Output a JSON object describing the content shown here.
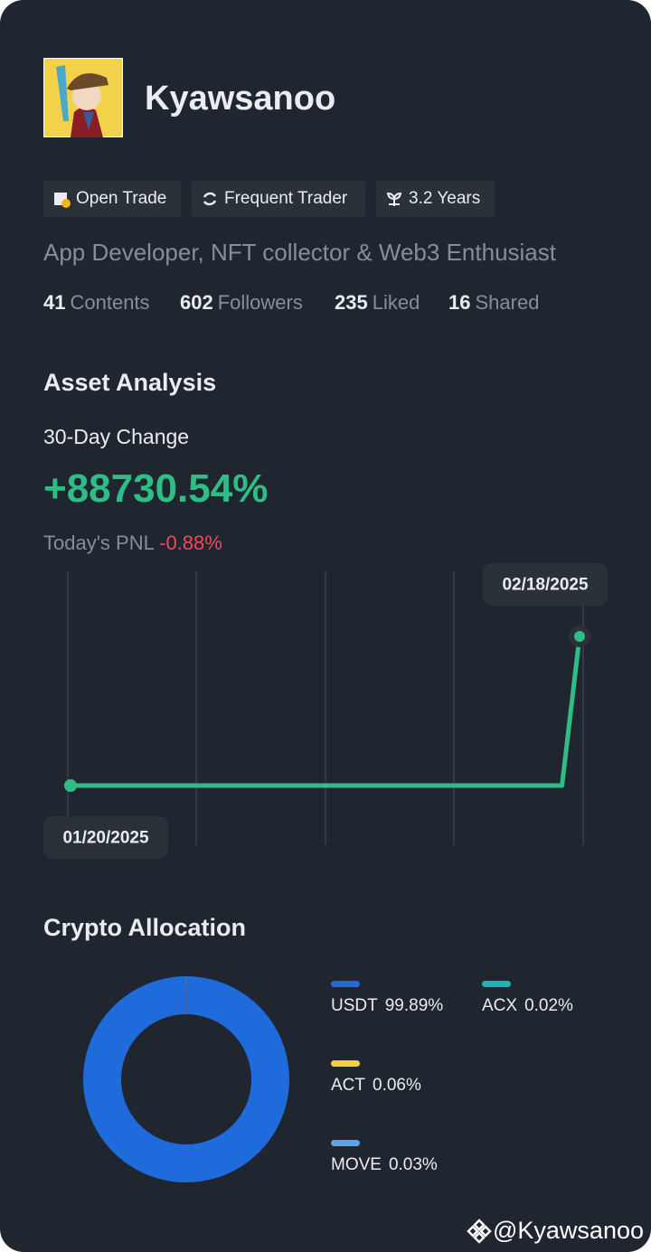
{
  "profile": {
    "name": "Kyawsanoo",
    "tags": [
      "Open Trade",
      "Frequent Trader",
      "3.2 Years"
    ],
    "bio": "App Developer, NFT collector & Web3 Enthusiast",
    "stats": [
      {
        "value": 41,
        "label": "Contents"
      },
      {
        "value": 602,
        "label": "Followers"
      },
      {
        "value": 235,
        "label": "Liked"
      },
      {
        "value": 16,
        "label": "Shared"
      }
    ]
  },
  "asset_analysis": {
    "title": "Asset Analysis",
    "change_label": "30-Day Change",
    "change": "+88730.54%",
    "pnl_label": "Today's PNL",
    "pnl": "-0.88%"
  },
  "chart_data": [
    {
      "type": "line",
      "x": [
        "01/20/2025",
        null,
        null,
        null,
        null,
        null,
        null,
        null,
        null,
        null,
        null,
        null,
        null,
        null,
        null,
        null,
        null,
        null,
        null,
        null,
        null,
        null,
        null,
        null,
        null,
        null,
        null,
        null,
        null,
        "02/18/2025"
      ],
      "series": [
        {
          "color": "#2ebd85",
          "values": [
            0,
            0,
            0,
            0,
            0,
            0,
            0,
            0,
            0,
            0,
            0,
            0,
            0,
            0,
            0,
            0,
            0,
            0,
            0,
            0,
            0,
            0,
            0,
            0,
            0,
            0,
            0,
            0,
            0,
            88730.54
          ]
        }
      ]
    },
    {
      "type": "pie",
      "title": "Crypto Allocation",
      "donut": true,
      "categories": [
        "USDT",
        "ACX",
        "ACT",
        "MOVE"
      ],
      "values": [
        99.89,
        0.02,
        0.06,
        0.03
      ],
      "value_labels": [
        "99.89%",
        "0.02%",
        "0.06%",
        "0.03%"
      ],
      "colors": [
        "#1f6bdb",
        "#1fb3b3",
        "#f5d142",
        "#5aa3f0"
      ]
    }
  ],
  "watermark": "@Kyawsanoo"
}
